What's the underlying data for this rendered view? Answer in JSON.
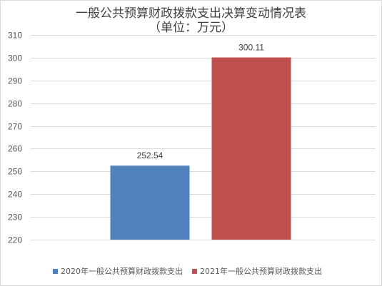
{
  "chart_data": {
    "type": "bar",
    "title": "一般公共预算财政拨款支出决算变动情况表",
    "subtitle": "（单位：万元）",
    "series": [
      {
        "name": "2020年一般公共预算财政拨款支出",
        "value": 252.54,
        "label": "252.54",
        "color": "#4f81bd"
      },
      {
        "name": "2021年一般公共预算财政拨款支出",
        "value": 300.11,
        "label": "300.11",
        "color": "#c0504d"
      }
    ],
    "ylim": [
      220,
      310
    ],
    "yticks": [
      220,
      230,
      240,
      250,
      260,
      270,
      280,
      290,
      300,
      310
    ],
    "grid": true,
    "legend": "bottom"
  }
}
